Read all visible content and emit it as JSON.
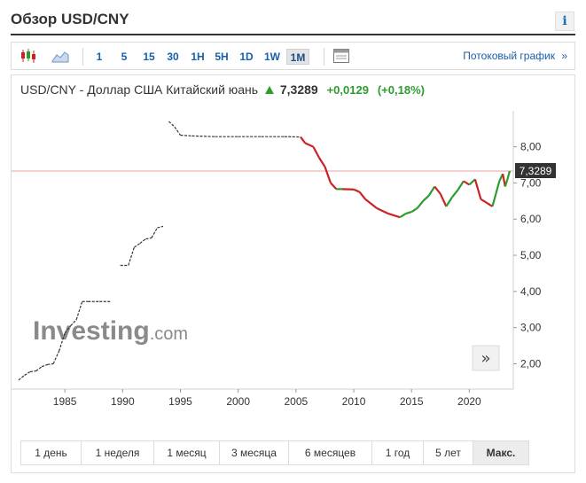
{
  "page": {
    "title": "Обзор USD/CNY",
    "info_label": "i"
  },
  "toolbar": {
    "icons": [
      "candlestick-icon",
      "area-chart-icon"
    ],
    "periods": [
      "1",
      "5",
      "15",
      "30",
      "1H",
      "5H",
      "1D",
      "1W",
      "1M"
    ],
    "active_period": "1M",
    "layout_icon": "layout-icon",
    "stream_link": "Потоковый график",
    "stream_arrow": "»"
  },
  "quote": {
    "name": "USD/CNY - Доллар США Китайский юань",
    "price": "7,3289",
    "change": "+0,0129",
    "change_pct": "(+0,18%)",
    "direction": "up"
  },
  "watermark": {
    "brand": "Investing",
    "suffix": ".com"
  },
  "scroll_button": "»",
  "chart_data": {
    "type": "line",
    "x_ticks": [
      "1985",
      "1990",
      "1995",
      "2000",
      "2005",
      "2010",
      "2015",
      "2020"
    ],
    "y_ticks": [
      "2,00",
      "3,00",
      "4,00",
      "5,00",
      "6,00",
      "7,00",
      "8,00"
    ],
    "xlim": [
      1981.0,
      2023.5
    ],
    "ylim": [
      1.35,
      8.75
    ],
    "current_value": 7.3289,
    "current_label": "7,3289",
    "up_color": "#2e9b2e",
    "down_color": "#cc2222",
    "early_color": "#333333",
    "series": [
      {
        "points": [
          [
            1981.0,
            1.55
          ],
          [
            1981.5,
            1.68
          ],
          [
            1982.0,
            1.78
          ],
          [
            1982.5,
            1.8
          ],
          [
            1983.0,
            1.92
          ],
          [
            1983.5,
            1.98
          ],
          [
            1984.0,
            2.0
          ],
          [
            1984.5,
            2.35
          ],
          [
            1985.0,
            2.85
          ],
          [
            1985.5,
            3.05
          ],
          [
            1986.0,
            3.22
          ],
          [
            1986.5,
            3.72
          ],
          [
            1987.0,
            3.72
          ],
          [
            1988.0,
            3.72
          ],
          [
            1989.0,
            3.72
          ],
          [
            1989.8,
            4.72
          ],
          [
            1990.5,
            4.72
          ],
          [
            1991.0,
            5.22
          ],
          [
            1991.5,
            5.33
          ],
          [
            1992.0,
            5.45
          ],
          [
            1992.5,
            5.48
          ],
          [
            1993.0,
            5.76
          ],
          [
            1993.5,
            5.8
          ],
          [
            1994.0,
            8.7
          ],
          [
            1994.5,
            8.55
          ],
          [
            1995.0,
            8.32
          ],
          [
            1996.0,
            8.3
          ],
          [
            1998.0,
            8.28
          ],
          [
            2000.0,
            8.28
          ],
          [
            2002.0,
            8.28
          ],
          [
            2004.0,
            8.28
          ],
          [
            2005.4,
            8.27
          ],
          [
            2005.8,
            8.1
          ],
          [
            2006.5,
            8.0
          ],
          [
            2007.0,
            7.7
          ],
          [
            2007.5,
            7.45
          ],
          [
            2008.0,
            7.0
          ],
          [
            2008.5,
            6.83
          ],
          [
            2009.0,
            6.83
          ],
          [
            2010.0,
            6.82
          ],
          [
            2010.5,
            6.75
          ],
          [
            2011.0,
            6.55
          ],
          [
            2012.0,
            6.3
          ],
          [
            2013.0,
            6.15
          ],
          [
            2014.0,
            6.05
          ],
          [
            2014.5,
            6.15
          ],
          [
            2015.0,
            6.2
          ],
          [
            2015.5,
            6.3
          ],
          [
            2016.0,
            6.5
          ],
          [
            2016.5,
            6.65
          ],
          [
            2017.0,
            6.9
          ],
          [
            2017.5,
            6.7
          ],
          [
            2018.0,
            6.35
          ],
          [
            2018.5,
            6.6
          ],
          [
            2019.0,
            6.8
          ],
          [
            2019.5,
            7.05
          ],
          [
            2020.0,
            6.95
          ],
          [
            2020.5,
            7.1
          ],
          [
            2021.0,
            6.55
          ],
          [
            2021.5,
            6.45
          ],
          [
            2022.0,
            6.35
          ],
          [
            2022.3,
            6.7
          ],
          [
            2022.6,
            7.05
          ],
          [
            2022.9,
            7.25
          ],
          [
            2023.1,
            6.9
          ],
          [
            2023.3,
            7.1
          ],
          [
            2023.5,
            7.33
          ]
        ]
      }
    ],
    "grid": false,
    "legend": "none"
  },
  "range": {
    "buttons": [
      "1 день",
      "1 неделя",
      "1 месяц",
      "3 месяца",
      "6 месяцев",
      "1 год",
      "5 лет",
      "Макс."
    ],
    "active": "Макс."
  }
}
